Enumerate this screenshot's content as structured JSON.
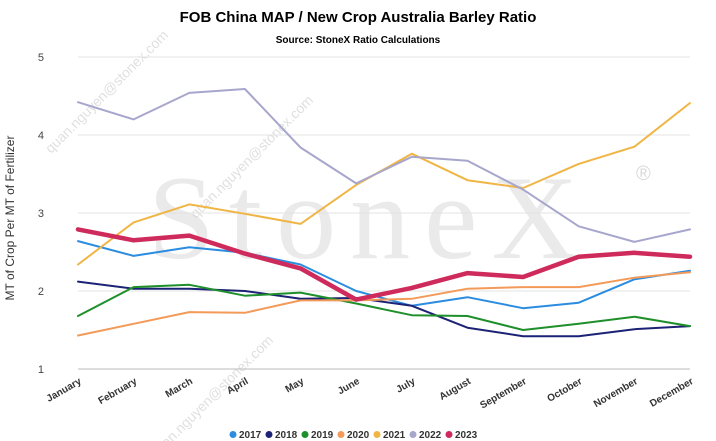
{
  "watermark": {
    "brand": "StoneX",
    "registered": "®",
    "url_text": "quan.nguyen@stonex.com"
  },
  "chart_data": {
    "type": "line",
    "title": "FOB China MAP / New Crop Australia Barley Ratio",
    "subtitle": "Source: StoneX Ratio Calculations",
    "xlabel": "",
    "ylabel": "MT of Crop Per MT of Fertilizer",
    "ylim": [
      1,
      5
    ],
    "yticks": [
      1,
      2,
      3,
      4,
      5
    ],
    "grid": "horizontal",
    "legend_position": "bottom",
    "categories": [
      "January",
      "February",
      "March",
      "April",
      "May",
      "June",
      "July",
      "August",
      "September",
      "October",
      "November",
      "December"
    ],
    "series": [
      {
        "name": "2017",
        "color": "#2b8ce0",
        "width": 2,
        "values": [
          2.64,
          2.45,
          2.56,
          2.49,
          2.34,
          2.0,
          1.81,
          1.92,
          1.78,
          1.85,
          2.15,
          2.26
        ]
      },
      {
        "name": "2018",
        "color": "#1c2275",
        "width": 2,
        "values": [
          2.12,
          2.03,
          2.03,
          2.0,
          1.9,
          1.91,
          1.81,
          1.53,
          1.42,
          1.42,
          1.51,
          1.55
        ]
      },
      {
        "name": "2019",
        "color": "#1e8f2a",
        "width": 2,
        "values": [
          1.68,
          2.05,
          2.08,
          1.94,
          1.98,
          1.84,
          1.69,
          1.68,
          1.5,
          1.58,
          1.67,
          1.55
        ]
      },
      {
        "name": "2020",
        "color": "#f39a59",
        "width": 2,
        "values": [
          1.43,
          1.58,
          1.73,
          1.72,
          1.88,
          1.88,
          1.9,
          2.03,
          2.05,
          2.05,
          2.17,
          2.24
        ]
      },
      {
        "name": "2021",
        "color": "#f0b545",
        "width": 2,
        "values": [
          2.34,
          2.88,
          3.11,
          2.99,
          2.86,
          3.36,
          3.76,
          3.42,
          3.32,
          3.63,
          3.85,
          4.41
        ]
      },
      {
        "name": "2022",
        "color": "#a7a6cc",
        "width": 2,
        "values": [
          4.42,
          4.2,
          4.54,
          4.59,
          3.84,
          3.38,
          3.72,
          3.67,
          3.3,
          2.83,
          2.63,
          2.79
        ]
      },
      {
        "name": "2023",
        "color": "#cf2a5c",
        "width": 4.5,
        "values": [
          2.79,
          2.65,
          2.71,
          2.48,
          2.29,
          1.89,
          2.04,
          2.23,
          2.18,
          2.44,
          2.49,
          2.44
        ]
      }
    ]
  }
}
